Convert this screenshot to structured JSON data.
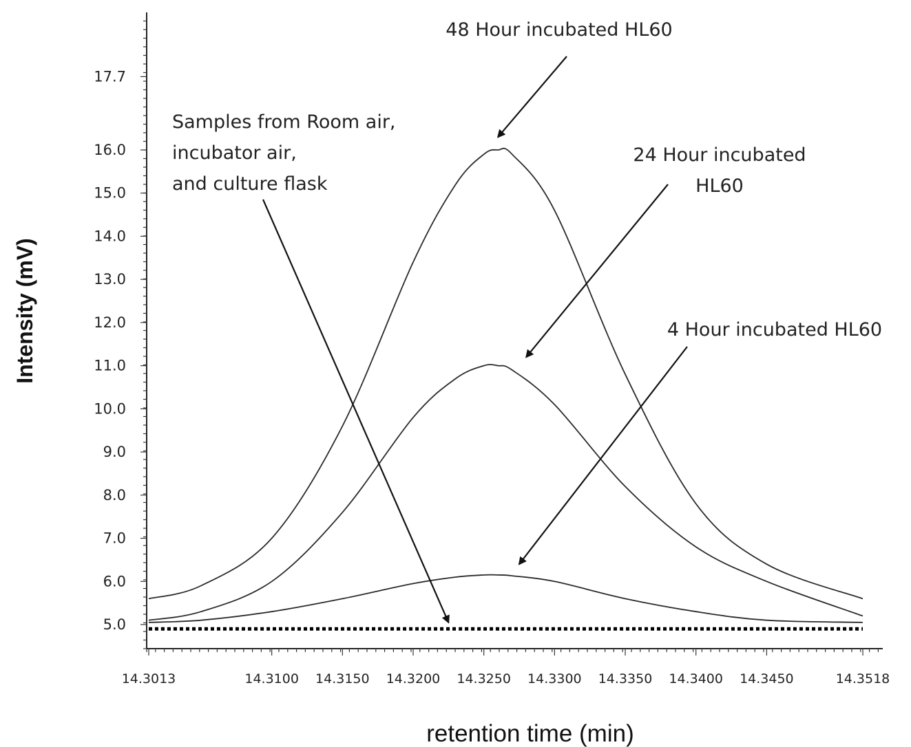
{
  "chart_data": {
    "type": "line",
    "xlabel": "retention time (min)",
    "ylabel": "Intensity (mV)",
    "xlim": [
      14.3013,
      14.3518
    ],
    "ylim": [
      4.4,
      19.0
    ],
    "x_ticks": [
      "14.3013",
      "14.3100",
      "14.3150",
      "14.3200",
      "14.3250",
      "14.3300",
      "14.3350",
      "14.3400",
      "14.3450",
      "14.3518"
    ],
    "y_ticks": [
      "5.0",
      "6.0",
      "7.0",
      "8.0",
      "9.0",
      "10.0",
      "11.0",
      "12.0",
      "13.0",
      "14.0",
      "15.0",
      "16.0",
      "17.7"
    ],
    "x": [
      14.3013,
      14.305,
      14.31,
      14.315,
      14.32,
      14.323,
      14.325,
      14.326,
      14.327,
      14.33,
      14.335,
      14.34,
      14.345,
      14.3518
    ],
    "series": [
      {
        "name": "48 Hour incubated HL60",
        "values": [
          5.6,
          5.9,
          7.0,
          9.6,
          13.4,
          15.2,
          15.9,
          16.0,
          15.9,
          14.6,
          10.8,
          7.8,
          6.4,
          5.6
        ]
      },
      {
        "name": "24 Hour incubated HL60",
        "values": [
          5.1,
          5.3,
          6.0,
          7.6,
          9.8,
          10.7,
          11.0,
          11.0,
          10.9,
          10.1,
          8.2,
          6.8,
          6.0,
          5.2
        ]
      },
      {
        "name": "4 Hour incubated HL60",
        "values": [
          5.05,
          5.1,
          5.3,
          5.6,
          5.95,
          6.1,
          6.15,
          6.15,
          6.13,
          6.0,
          5.6,
          5.3,
          5.1,
          5.05
        ]
      },
      {
        "name": "Samples from Room air, incubator air, and culture flask",
        "values": [
          4.9,
          4.9,
          4.9,
          4.9,
          4.9,
          4.9,
          4.9,
          4.9,
          4.9,
          4.9,
          4.9,
          4.9,
          4.9,
          4.9
        ]
      }
    ],
    "annotations": [
      {
        "lines": [
          "48 Hour incubated HL60"
        ],
        "target_x": 14.326,
        "target_y": 16.3
      },
      {
        "lines": [
          "24 Hour incubated",
          "HL60"
        ],
        "target_x": 14.328,
        "target_y": 11.2
      },
      {
        "lines": [
          "4 Hour incubated HL60"
        ],
        "target_x": 14.3275,
        "target_y": 6.4
      },
      {
        "lines": [
          "Samples from Room air,",
          "incubator air,",
          "and culture flask"
        ],
        "target_x": 14.3225,
        "target_y": 5.05
      }
    ],
    "grid": false,
    "legend": "none"
  }
}
